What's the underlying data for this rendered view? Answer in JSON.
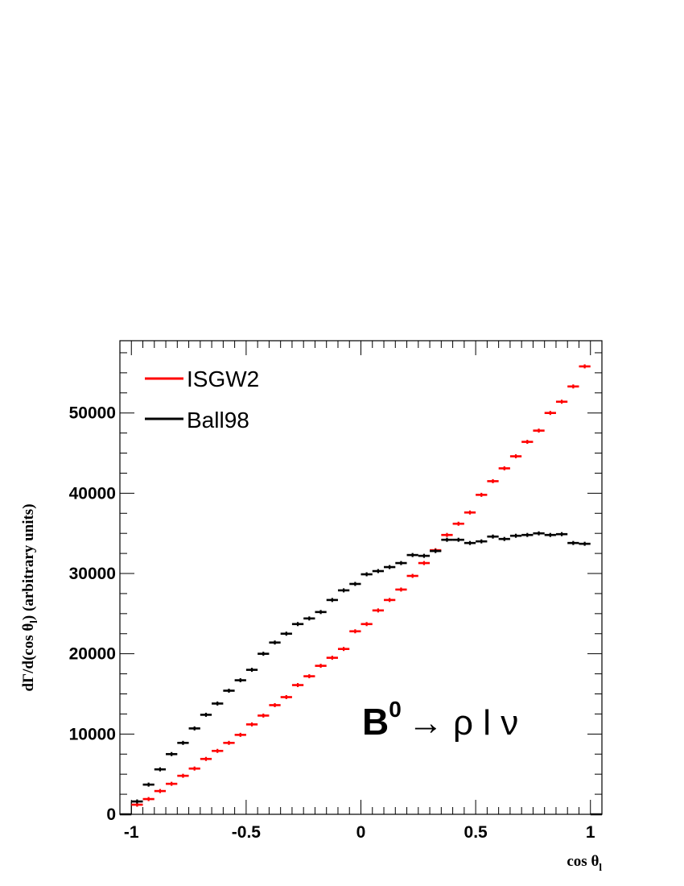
{
  "chart_data": {
    "type": "scatter",
    "xlabel": "cos θ",
    "xlabel_sub": "l",
    "ylabel_pre": "dΓ/d(cos θ",
    "ylabel_sub": "l",
    "ylabel_post": ") (arbitrary units)",
    "xlim": [
      -1.05,
      1.05
    ],
    "ylim": [
      0,
      59000
    ],
    "x_ticks": [
      -1,
      -0.5,
      0,
      0.5,
      1
    ],
    "x_tick_labels": [
      "-1",
      "-0.5",
      "0",
      "0.5",
      "1"
    ],
    "y_ticks": [
      0,
      10000,
      20000,
      30000,
      40000,
      50000
    ],
    "y_tick_labels": [
      "0",
      "10000",
      "20000",
      "30000",
      "40000",
      "50000"
    ],
    "grid": false,
    "legend_position": "top-left",
    "annotation": {
      "base": "B",
      "superscript": "0",
      "rest": "→ ρ l ν"
    },
    "bin_edges_x": [
      -1.0,
      1.0
    ],
    "bin_width": 0.05,
    "series": [
      {
        "name": "ISGW2",
        "color": "#ff0000",
        "x": [
          -0.975,
          -0.925,
          -0.875,
          -0.825,
          -0.775,
          -0.725,
          -0.675,
          -0.625,
          -0.575,
          -0.525,
          -0.475,
          -0.425,
          -0.375,
          -0.325,
          -0.275,
          -0.225,
          -0.175,
          -0.125,
          -0.075,
          -0.025,
          0.025,
          0.075,
          0.125,
          0.175,
          0.225,
          0.275,
          0.325,
          0.375,
          0.425,
          0.475,
          0.525,
          0.575,
          0.625,
          0.675,
          0.725,
          0.775,
          0.825,
          0.875,
          0.925,
          0.975
        ],
        "y": [
          1200,
          1900,
          2900,
          3800,
          4800,
          5700,
          6900,
          7900,
          8900,
          9900,
          11200,
          12300,
          13600,
          14600,
          16100,
          17200,
          18500,
          19500,
          20600,
          22800,
          23700,
          25400,
          26700,
          28000,
          29700,
          31300,
          32900,
          34800,
          36200,
          37600,
          39800,
          41500,
          43100,
          44600,
          46400,
          47800,
          50000,
          51400,
          53300,
          55800
        ]
      },
      {
        "name": "Ball98",
        "color": "#000000",
        "x": [
          -0.975,
          -0.925,
          -0.875,
          -0.825,
          -0.775,
          -0.725,
          -0.675,
          -0.625,
          -0.575,
          -0.525,
          -0.475,
          -0.425,
          -0.375,
          -0.325,
          -0.275,
          -0.225,
          -0.175,
          -0.125,
          -0.075,
          -0.025,
          0.025,
          0.075,
          0.125,
          0.175,
          0.225,
          0.275,
          0.325,
          0.375,
          0.425,
          0.475,
          0.525,
          0.575,
          0.625,
          0.675,
          0.725,
          0.775,
          0.825,
          0.875,
          0.925,
          0.975
        ],
        "y": [
          1600,
          3700,
          5600,
          7500,
          8900,
          10700,
          12400,
          13800,
          15400,
          16700,
          18000,
          20000,
          21400,
          22500,
          23700,
          24400,
          25200,
          26700,
          27900,
          28700,
          29900,
          30300,
          30800,
          31300,
          32300,
          32200,
          32800,
          34200,
          34200,
          33800,
          34000,
          34600,
          34300,
          34700,
          34800,
          35000,
          34800,
          34900,
          33800,
          33700
        ]
      }
    ]
  }
}
